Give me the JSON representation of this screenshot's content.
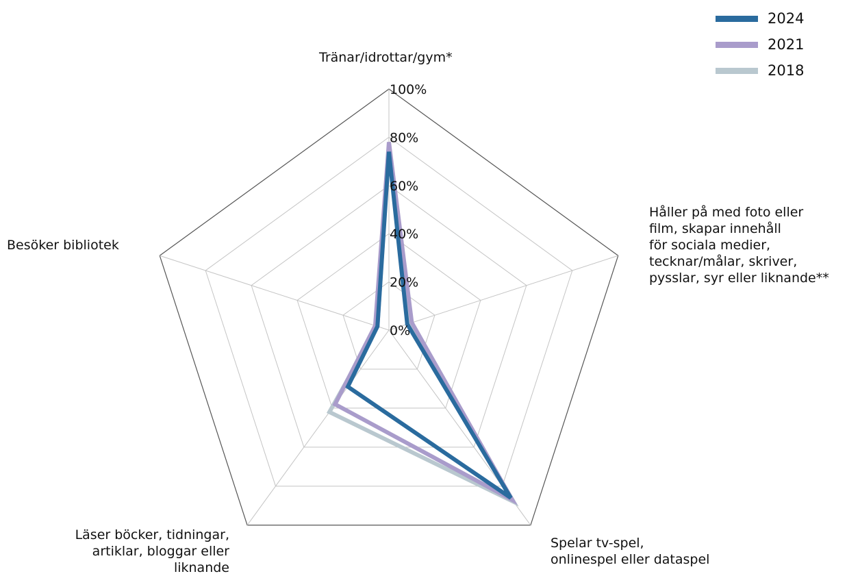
{
  "chart_data": {
    "type": "radar",
    "axes": [
      "Tränar/idrottar/gym*",
      "Håller på med foto eller\nfilm, skapar innehåll\nför sociala medier,\ntecknar/målar, skriver,\npysslar, syr eller liknande**",
      "Spelar tv-spel,\nonlinespel eller dataspel",
      "Läser böcker, tidningar,\nartiklar, bloggar eller\nliknande",
      "Besöker bibliotek"
    ],
    "tick_labels": [
      "0%",
      "20%",
      "40%",
      "60%",
      "80%",
      "100%"
    ],
    "range": [
      0,
      100
    ],
    "series": [
      {
        "name": "2018",
        "color": "#b9c8cf",
        "values": [
          76,
          9,
          88,
          42,
          5
        ]
      },
      {
        "name": "2021",
        "color": "#a99ccb",
        "values": [
          78,
          10,
          87,
          38,
          6
        ]
      },
      {
        "name": "2024",
        "color": "#2a6b9e",
        "values": [
          74,
          8,
          86,
          29,
          5
        ]
      }
    ],
    "legend": {
      "position": "top-right",
      "items": [
        {
          "label": "2024",
          "color": "#2a6b9e"
        },
        {
          "label": "2021",
          "color": "#a99ccb"
        },
        {
          "label": "2018",
          "color": "#b9c8cf"
        }
      ]
    },
    "grid": true
  }
}
